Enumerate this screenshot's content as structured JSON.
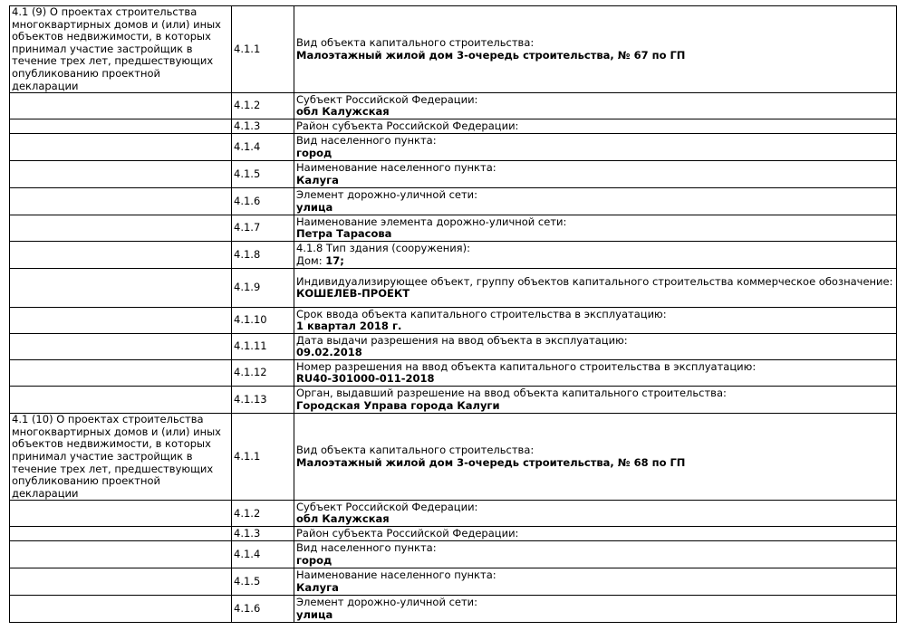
{
  "sections": [
    {
      "title": "4.1 (9) О проектах строительства многоквартирных домов и (или) иных объектов недвижимости, в которых принимал участие застройщик в течение трех лет, предшествующих опубликованию проектной декларации",
      "rows": [
        {
          "num": "4.1.1",
          "label": "Вид объекта капитального строительства:",
          "value": "Малоэтажный жилой дом 3-очередь строительства, № 67 по ГП"
        },
        {
          "num": "4.1.2",
          "label": "Субъект Российской Федерации:",
          "value": "обл Калужская"
        },
        {
          "num": "4.1.3",
          "label": "Район субъекта Российской Федерации:",
          "value": ""
        },
        {
          "num": "4.1.4",
          "label": "Вид населенного пункта:",
          "value": "город"
        },
        {
          "num": "4.1.5",
          "label": "Наименование населенного пункта:",
          "value": "Калуга"
        },
        {
          "num": "4.1.6",
          "label": "Элемент дорожно-уличной сети:",
          "value": "улица"
        },
        {
          "num": "4.1.7",
          "label": "Наименование элемента дорожно-уличной сети:",
          "value": "Петра Тарасова"
        },
        {
          "num": "4.1.8",
          "label": "4.1.8 Тип здания (сооружения):",
          "prefix": "Дом: ",
          "value": "17;"
        },
        {
          "num": "4.1.9",
          "label": "Индивидуализирующее объект, группу объектов капитального строительства коммерческое обозначение:",
          "value": "КОШЕЛЕВ-ПРОЕКТ"
        },
        {
          "num": "4.1.10",
          "label": "Срок ввода объекта капитального строительства в эксплуатацию:",
          "value": "1 квартал 2018 г."
        },
        {
          "num": "4.1.11",
          "label": "Дата выдачи разрешения на ввод объекта в эксплуатацию:",
          "value": "09.02.2018"
        },
        {
          "num": "4.1.12",
          "label": "Номер разрешения на ввод объекта капитального строительства в эксплуатацию:",
          "value": "RU40-301000-011-2018"
        },
        {
          "num": "4.1.13",
          "label": "Орган, выдавший разрешение на ввод объекта капитального строительства:",
          "value": "Городская Управа города Калуги"
        }
      ]
    },
    {
      "title": "4.1 (10) О проектах строительства многоквартирных домов и (или) иных объектов недвижимости, в которых принимал участие застройщик в течение трех лет, предшествующих опубликованию проектной декларации",
      "rows": [
        {
          "num": "4.1.1",
          "label": "Вид объекта капитального строительства:",
          "value": "Малоэтажный жилой дом 3-очередь строительства, № 68 по ГП"
        },
        {
          "num": "4.1.2",
          "label": "Субъект Российской Федерации:",
          "value": "обл Калужская"
        },
        {
          "num": "4.1.3",
          "label": "Район субъекта Российской Федерации:",
          "value": ""
        },
        {
          "num": "4.1.4",
          "label": "Вид населенного пункта:",
          "value": "город"
        },
        {
          "num": "4.1.5",
          "label": "Наименование населенного пункта:",
          "value": "Калуга"
        },
        {
          "num": "4.1.6",
          "label": "Элемент дорожно-уличной сети:",
          "value": "улица"
        }
      ]
    }
  ]
}
